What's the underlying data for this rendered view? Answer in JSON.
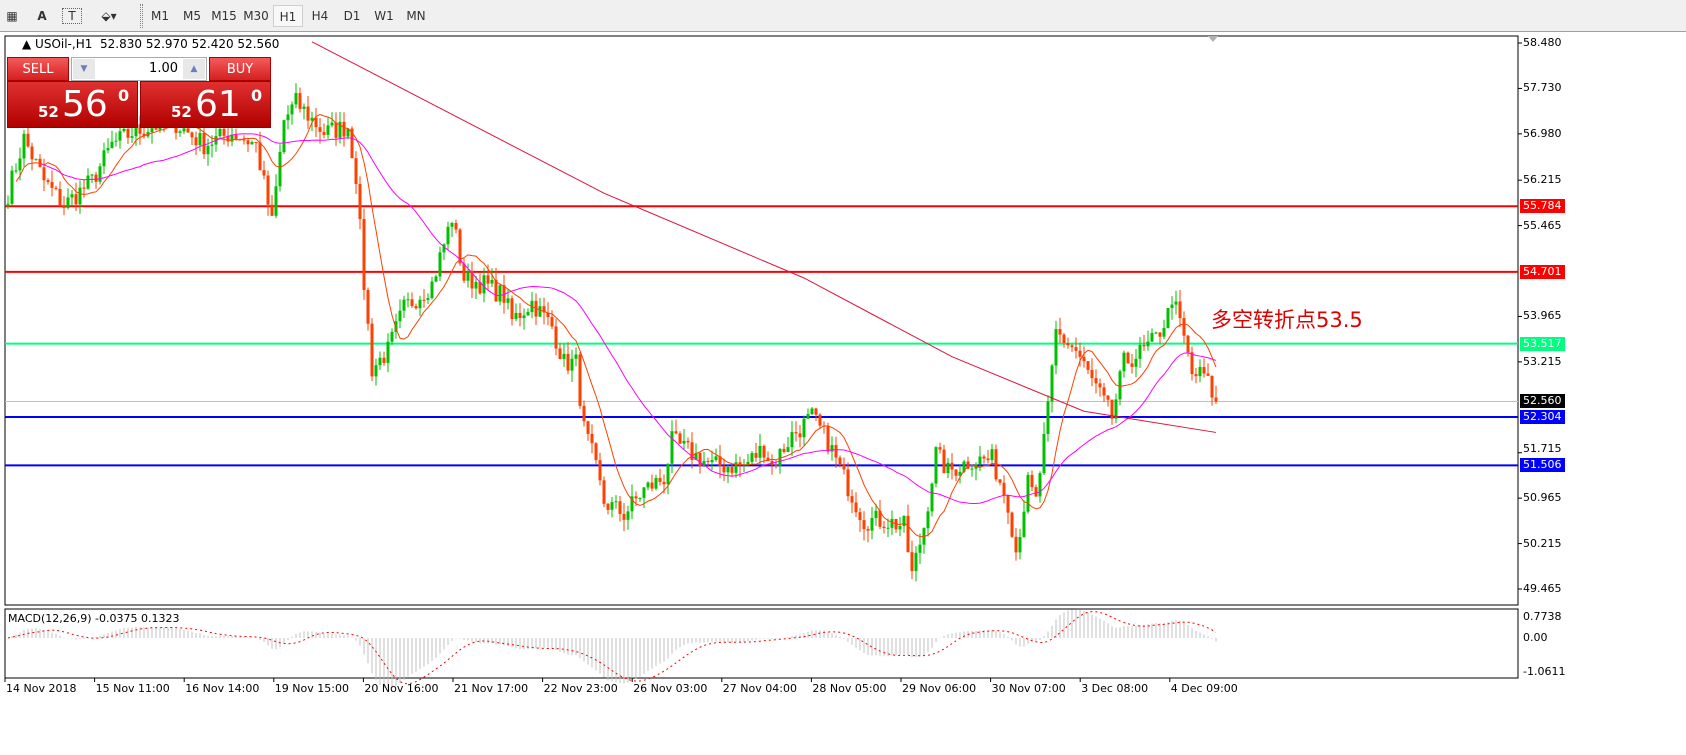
{
  "toolbar": {
    "icons": [
      "grid-f-icon",
      "text-a-icon",
      "text-box-icon",
      "shapes-icon"
    ],
    "timeframes": [
      "M1",
      "M5",
      "M15",
      "M30",
      "H1",
      "H4",
      "D1",
      "W1",
      "MN"
    ],
    "selected": "H1"
  },
  "header": {
    "symbol": "USOil-,H1",
    "ohlc": "52.830 52.970 52.420 52.560"
  },
  "trade_panel": {
    "sell_label": "SELL",
    "buy_label": "BUY",
    "lot": "1.00",
    "sell_small": "52",
    "sell_big": "56",
    "sell_pip": "0",
    "buy_small": "52",
    "buy_big": "61",
    "buy_pip": "0"
  },
  "annotation": "多空转折点53.5",
  "macd_label": "MACD(12,26,9) -0.0375 0.1323",
  "chart_data": {
    "type": "candlestick",
    "price_ticks": [
      "58.480",
      "57.730",
      "56.980",
      "56.215",
      "55.465",
      "53.965",
      "53.215",
      "51.715",
      "50.965",
      "50.215",
      "49.465"
    ],
    "price_range": [
      49.465,
      58.48
    ],
    "macd_ticks": [
      "0.7738",
      "0.00",
      "-1.0611"
    ],
    "date_labels": [
      "14 Nov 2018",
      "15 Nov 11:00",
      "16 Nov 14:00",
      "19 Nov 15:00",
      "20 Nov 16:00",
      "21 Nov 17:00",
      "22 Nov 23:00",
      "26 Nov 03:00",
      "27 Nov 04:00",
      "28 Nov 05:00",
      "29 Nov 06:00",
      "30 Nov 07:00",
      "3 Dec 08:00",
      "4 Dec 09:00"
    ],
    "hlines": [
      {
        "price": "55.784",
        "color": "#ff0000"
      },
      {
        "price": "54.701",
        "color": "#ff0000"
      },
      {
        "price": "53.517",
        "color": "#00ff7f"
      },
      {
        "price": "52.304",
        "color": "#0000ff"
      },
      {
        "price": "51.506",
        "color": "#0000ff"
      }
    ],
    "current_price": "52.560",
    "colors": {
      "up": "#00c000",
      "down": "#ff4000",
      "ma_fast": "#ff4000",
      "ma_mid": "#ff00ff",
      "ma_slow": "#dc143c",
      "macd_hist": "#c0c0c0",
      "macd_signal": "#ff0000"
    },
    "close_path": [
      [
        0,
        56.0
      ],
      [
        4,
        56.9
      ],
      [
        9,
        56.2
      ],
      [
        14,
        55.8
      ],
      [
        21,
        56.2
      ],
      [
        26,
        56.8
      ],
      [
        31,
        57.0
      ],
      [
        36,
        57.1
      ],
      [
        41,
        57.2
      ],
      [
        49,
        56.8
      ],
      [
        56,
        57.0
      ],
      [
        62,
        56.8
      ],
      [
        66,
        55.5
      ],
      [
        69,
        57.2
      ],
      [
        72,
        57.5
      ],
      [
        79,
        57.0
      ],
      [
        85,
        57.1
      ],
      [
        87,
        56.3
      ],
      [
        89,
        54.5
      ],
      [
        91,
        53.1
      ],
      [
        95,
        53.4
      ],
      [
        99,
        54.1
      ],
      [
        106,
        54.5
      ],
      [
        111,
        55.6
      ],
      [
        114,
        54.6
      ],
      [
        119,
        54.5
      ],
      [
        124,
        54.3
      ],
      [
        126,
        53.9
      ],
      [
        131,
        54.2
      ],
      [
        136,
        53.8
      ],
      [
        139,
        53.2
      ],
      [
        142,
        53.2
      ],
      [
        144,
        52.1
      ],
      [
        146,
        51.7
      ],
      [
        149,
        50.9
      ],
      [
        154,
        50.7
      ],
      [
        159,
        51.1
      ],
      [
        164,
        51.3
      ],
      [
        166,
        51.9
      ],
      [
        171,
        51.7
      ],
      [
        176,
        51.5
      ],
      [
        184,
        51.5
      ],
      [
        189,
        51.8
      ],
      [
        191,
        51.5
      ],
      [
        196,
        52.0
      ],
      [
        201,
        52.3
      ],
      [
        205,
        51.9
      ],
      [
        209,
        51.3
      ],
      [
        214,
        50.6
      ],
      [
        219,
        50.6
      ],
      [
        224,
        50.5
      ],
      [
        226,
        49.7
      ],
      [
        229,
        50.5
      ],
      [
        232,
        51.7
      ],
      [
        235,
        51.4
      ],
      [
        241,
        51.6
      ],
      [
        246,
        51.6
      ],
      [
        250,
        50.9
      ],
      [
        252,
        50.1
      ],
      [
        255,
        51.2
      ],
      [
        257,
        50.9
      ],
      [
        260,
        52.4
      ],
      [
        262,
        53.7
      ],
      [
        267,
        53.4
      ],
      [
        271,
        52.9
      ],
      [
        276,
        52.3
      ],
      [
        279,
        53.2
      ],
      [
        284,
        53.4
      ],
      [
        287,
        53.6
      ],
      [
        290,
        54.0
      ],
      [
        291,
        54.3
      ],
      [
        294,
        53.6
      ],
      [
        296,
        53.0
      ],
      [
        299,
        53.0
      ],
      [
        302,
        52.56
      ]
    ],
    "ma_slow_path": [
      [
        76,
        58.5
      ],
      [
        149,
        56.0
      ],
      [
        199,
        54.6
      ],
      [
        236,
        53.3
      ],
      [
        269,
        52.4
      ],
      [
        302,
        52.05
      ]
    ]
  }
}
